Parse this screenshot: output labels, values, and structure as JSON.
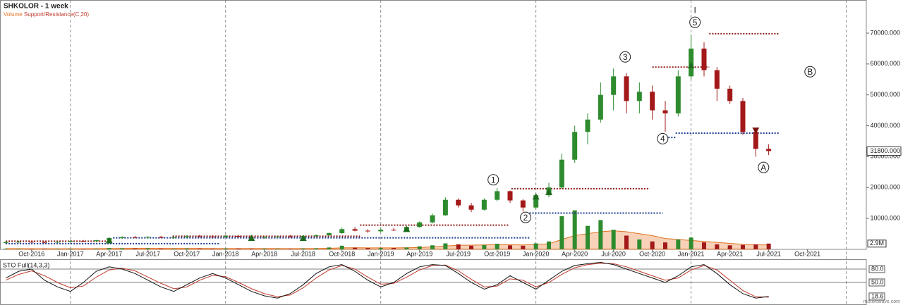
{
  "chart_data": {
    "type": "candlestick",
    "title": "SHKOLOR - 1 week",
    "legend": [
      "Volume",
      "Support/Resistance(C,20)"
    ],
    "categories": [
      null,
      null,
      "Oct-2016",
      null,
      null,
      "Jan-2017",
      null,
      null,
      "Apr-2017",
      null,
      null,
      "Jul-2017",
      null,
      null,
      "Oct-2017",
      null,
      null,
      "Jan-2018",
      null,
      null,
      "Apr-2018",
      null,
      null,
      "Jul-2018",
      null,
      null,
      "Oct-2018",
      null,
      null,
      "Jan-2019",
      null,
      null,
      "Apr-2019",
      null,
      null,
      "Jul-2019",
      null,
      null,
      "Oct-2019",
      null,
      null,
      "Jan-2020",
      null,
      null,
      "Apr-2020",
      null,
      null,
      "Jul-2020",
      null,
      null,
      "Oct-2020",
      null,
      null,
      "Jan-2021",
      null,
      null,
      "Apr-2021",
      null,
      null,
      "Jul-2021",
      null,
      null,
      "Oct-2021",
      null,
      null,
      null
    ],
    "candles": {
      "up_color": "#2e8b2e",
      "down_color": "#a31818",
      "open": [
        2000,
        2300,
        2400,
        2300,
        2200,
        2400,
        2700,
        2600,
        2900,
        3600,
        3900,
        3800,
        4000,
        3700,
        3900,
        4200,
        4100,
        3900,
        4300,
        4000,
        3700,
        3900,
        4100,
        4000,
        4300,
        4500,
        5200,
        6500,
        6000,
        5800,
        6300,
        6100,
        7200,
        8700,
        11000,
        16000,
        14200,
        12800,
        16000,
        18800,
        15800,
        13500,
        17500,
        20000,
        29000,
        38000,
        42000,
        50000,
        56000,
        48000,
        51000,
        45000,
        44000,
        56000,
        65000,
        58000,
        52000,
        48000,
        38000,
        32500,
        null,
        null,
        null,
        null,
        null,
        null
      ],
      "high": [
        2600,
        2700,
        2800,
        2500,
        2600,
        2900,
        3000,
        3000,
        3800,
        4200,
        4300,
        4200,
        4300,
        4100,
        4500,
        4700,
        4500,
        4600,
        4700,
        4300,
        4200,
        4400,
        4600,
        4500,
        4800,
        5500,
        7000,
        7200,
        6500,
        6700,
        6900,
        7500,
        9000,
        11500,
        16800,
        16500,
        15000,
        16500,
        19800,
        19000,
        16200,
        18000,
        21500,
        31000,
        40000,
        44000,
        54000,
        58500,
        57000,
        54000,
        53000,
        48000,
        58000,
        69500,
        67000,
        59000,
        53000,
        49000,
        39000,
        34000,
        null,
        null,
        null,
        null,
        null,
        null
      ],
      "low": [
        1800,
        2100,
        2100,
        1900,
        2000,
        2200,
        2400,
        2300,
        2800,
        3300,
        3600,
        3500,
        3600,
        3400,
        3700,
        3900,
        3700,
        3800,
        3900,
        3500,
        3400,
        3600,
        3800,
        3600,
        3900,
        4300,
        5000,
        5800,
        5300,
        5500,
        5900,
        6000,
        7000,
        8400,
        10800,
        13500,
        12000,
        12500,
        15500,
        15000,
        12200,
        13000,
        16800,
        19500,
        28000,
        34000,
        41000,
        45000,
        44000,
        44000,
        42000,
        38000,
        43000,
        55000,
        56000,
        48000,
        47000,
        37000,
        30000,
        30500,
        null,
        null,
        null,
        null,
        null,
        null
      ],
      "close": [
        2300,
        2400,
        2300,
        2200,
        2400,
        2700,
        2600,
        2900,
        3600,
        3900,
        3800,
        4000,
        3700,
        3900,
        4200,
        4100,
        3900,
        4300,
        4000,
        3700,
        3900,
        4100,
        4000,
        4300,
        4500,
        5200,
        6500,
        6000,
        5800,
        6300,
        6100,
        7200,
        8700,
        11000,
        16000,
        14200,
        12800,
        16000,
        18800,
        15800,
        13500,
        17500,
        20000,
        29000,
        38000,
        42000,
        50000,
        56000,
        48000,
        51000,
        45000,
        44000,
        56000,
        65000,
        58000,
        52000,
        48000,
        38000,
        32500,
        31800,
        null,
        null,
        null,
        null,
        null,
        null
      ]
    },
    "ylim": [
      0,
      80500
    ],
    "yticks": [
      {
        "value": 10000,
        "label": "10000.000"
      },
      {
        "value": 20000,
        "label": "20000.000"
      },
      {
        "value": 30000,
        "label": "30000.000"
      },
      {
        "value": 40000,
        "label": "40000.000"
      },
      {
        "value": 50000,
        "label": "50000.000"
      },
      {
        "value": 60000,
        "label": "60000.000"
      },
      {
        "value": 70000,
        "label": "70000.000"
      }
    ],
    "last_price": {
      "value": 31800,
      "label": "31800.000"
    },
    "volume": {
      "color": "#e07020",
      "values": [
        300000,
        250000,
        200000,
        250000,
        200000,
        300000,
        250000,
        300000,
        600000,
        500000,
        400000,
        500000,
        350000,
        300000,
        400000,
        350000,
        300000,
        400000,
        350000,
        300000,
        350000,
        300000,
        250000,
        400000,
        500000,
        900000,
        1800000,
        800000,
        600000,
        700000,
        600000,
        900000,
        1500000,
        2000000,
        3000000,
        2500000,
        1800000,
        2200000,
        2800000,
        2000000,
        1800000,
        3000000,
        4000000,
        17000000,
        20000000,
        12000000,
        15000000,
        10000000,
        7000000,
        5000000,
        4000000,
        3500000,
        5000000,
        6000000,
        3500000,
        2500000,
        2000000,
        2200000,
        2500000,
        2900000,
        null,
        null,
        null,
        null,
        null,
        null
      ],
      "average": [
        300000,
        280000,
        260000,
        250000,
        240000,
        250000,
        260000,
        280000,
        350000,
        400000,
        420000,
        430000,
        400000,
        380000,
        370000,
        360000,
        350000,
        350000,
        340000,
        330000,
        330000,
        320000,
        310000,
        320000,
        350000,
        450000,
        700000,
        750000,
        720000,
        700000,
        680000,
        750000,
        900000,
        1200000,
        1700000,
        2000000,
        2100000,
        2200000,
        2400000,
        2300000,
        2200000,
        2400000,
        2800000,
        5000000,
        7000000,
        8000000,
        9000000,
        9500000,
        9000000,
        8000000,
        7000000,
        5500000,
        5000000,
        4500000,
        4000000,
        3500000,
        3000000,
        2500000,
        2300000,
        2200000,
        null,
        null,
        null,
        null,
        null,
        null
      ],
      "last": {
        "value": 2900000,
        "label": "2.9M"
      }
    },
    "levels": [
      {
        "price": 69800,
        "start": 54.4,
        "end": 59.8,
        "color": "#8b1a1a"
      },
      {
        "price": 59000,
        "start": 50,
        "end": 54.4,
        "color": "#8b1a1a"
      },
      {
        "price": 37600,
        "start": 51.8,
        "end": 59.8,
        "color": "#1f3a93"
      },
      {
        "price": 36200,
        "start": 50.8,
        "end": 51.8,
        "color": "#1f3a93"
      },
      {
        "price": 19600,
        "start": 39.1,
        "end": 49.8,
        "color": "#8b1a1a"
      },
      {
        "price": 11700,
        "start": 40.5,
        "end": 50.8,
        "color": "#1f3a93"
      },
      {
        "price": 7800,
        "start": 27.4,
        "end": 38.9,
        "color": "#8b1a1a"
      },
      {
        "price": 4200,
        "start": 12.9,
        "end": 27.4,
        "color": "#8b1a1a"
      },
      {
        "price": 3700,
        "start": 8.3,
        "end": 40.5,
        "color": "#1f3a93"
      },
      {
        "price": 2600,
        "start": 0,
        "end": 8.3,
        "color": "#8b1a1a"
      },
      {
        "price": 1800,
        "start": 0,
        "end": 16.5,
        "color": "#1f3a93"
      }
    ],
    "signals": [
      {
        "index": 8,
        "price": 2800,
        "direction": "up"
      },
      {
        "index": 19,
        "price": 3600,
        "direction": "up"
      },
      {
        "index": 23,
        "price": 3600,
        "direction": "up"
      },
      {
        "index": 31,
        "price": 6500,
        "direction": "up"
      },
      {
        "index": 41,
        "price": 17000,
        "direction": "up"
      },
      {
        "index": 42,
        "price": 18500,
        "direction": "up"
      },
      {
        "index": 53,
        "price": 59500,
        "direction": "up"
      },
      {
        "index": 58,
        "price": 38500,
        "direction": "down"
      }
    ],
    "annotations": [
      {
        "text": "1",
        "index": 37.7,
        "price": 22500,
        "circled": true
      },
      {
        "text": "2",
        "index": 40.2,
        "price": 10300,
        "circled": true
      },
      {
        "text": "3",
        "index": 47.9,
        "price": 62300,
        "circled": true
      },
      {
        "text": "4",
        "index": 50.8,
        "price": 35800,
        "circled": true
      },
      {
        "text": "5",
        "index": 53.3,
        "price": 73500,
        "circled": true
      },
      {
        "text": "I",
        "index": 53.3,
        "price": 77500,
        "circled": false
      },
      {
        "text": "A",
        "index": 58.6,
        "price": 26500,
        "circled": true
      },
      {
        "text": "B",
        "index": 62.2,
        "price": 57500,
        "circled": true
      }
    ],
    "stoch": {
      "title": "STO Full(14,3,3)",
      "ylim": [
        0,
        100
      ],
      "yticks": [
        {
          "value": 80,
          "label": "80.0"
        },
        {
          "value": 50,
          "label": "50.0"
        }
      ],
      "k_color": "#111111",
      "d_color": "#c0392b",
      "k": [
        60,
        75,
        80,
        55,
        40,
        30,
        50,
        75,
        85,
        80,
        70,
        55,
        40,
        30,
        45,
        60,
        70,
        60,
        45,
        30,
        20,
        15,
        25,
        45,
        70,
        85,
        90,
        75,
        55,
        40,
        50,
        70,
        85,
        90,
        88,
        70,
        50,
        35,
        45,
        65,
        50,
        35,
        55,
        75,
        88,
        92,
        95,
        90,
        80,
        70,
        60,
        50,
        65,
        85,
        90,
        70,
        45,
        25,
        15,
        18.6,
        null,
        null,
        null,
        null,
        null,
        null
      ],
      "d": [
        55,
        68,
        76,
        65,
        50,
        38,
        42,
        62,
        78,
        82,
        76,
        62,
        48,
        36,
        40,
        55,
        66,
        63,
        50,
        36,
        25,
        18,
        22,
        38,
        60,
        78,
        88,
        80,
        62,
        46,
        48,
        62,
        78,
        88,
        89,
        76,
        57,
        40,
        42,
        58,
        55,
        40,
        50,
        68,
        83,
        90,
        93,
        92,
        85,
        75,
        65,
        55,
        60,
        78,
        88,
        78,
        55,
        32,
        18,
        17,
        null,
        null,
        null,
        null,
        null,
        null
      ],
      "last": {
        "value": 18.6,
        "label": "18.6"
      }
    },
    "watermark": "motivewave.com"
  }
}
